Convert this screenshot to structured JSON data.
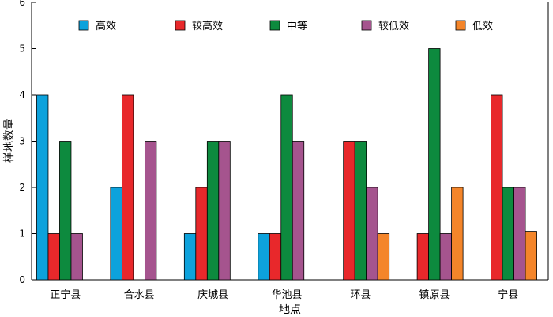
{
  "chart_data": {
    "type": "bar",
    "title": "",
    "xlabel": "地点",
    "ylabel": "样地数量",
    "ylim": [
      0,
      6
    ],
    "yticks": [
      0,
      1,
      2,
      3,
      4,
      5,
      6
    ],
    "grid": false,
    "legend_position": "top",
    "categories": [
      "正宁县",
      "合水县",
      "庆城县",
      "华池县",
      "环县",
      "镇原县",
      "宁县"
    ],
    "series": [
      {
        "name": "高效",
        "color": "#0da2dc",
        "values": [
          4,
          2,
          1,
          1,
          0,
          0,
          0
        ]
      },
      {
        "name": "较高效",
        "color": "#e8282b",
        "values": [
          1,
          4,
          2,
          1,
          3,
          1,
          4
        ]
      },
      {
        "name": "中等",
        "color": "#0d8a3e",
        "values": [
          3,
          0,
          3,
          4,
          3,
          5,
          2
        ]
      },
      {
        "name": "较低效",
        "color": "#a5548e",
        "values": [
          1,
          3,
          3,
          3,
          2,
          1,
          2
        ]
      },
      {
        "name": "低效",
        "color": "#f4852a",
        "values": [
          0,
          0,
          0,
          0,
          1,
          2,
          1.05
        ]
      }
    ]
  }
}
